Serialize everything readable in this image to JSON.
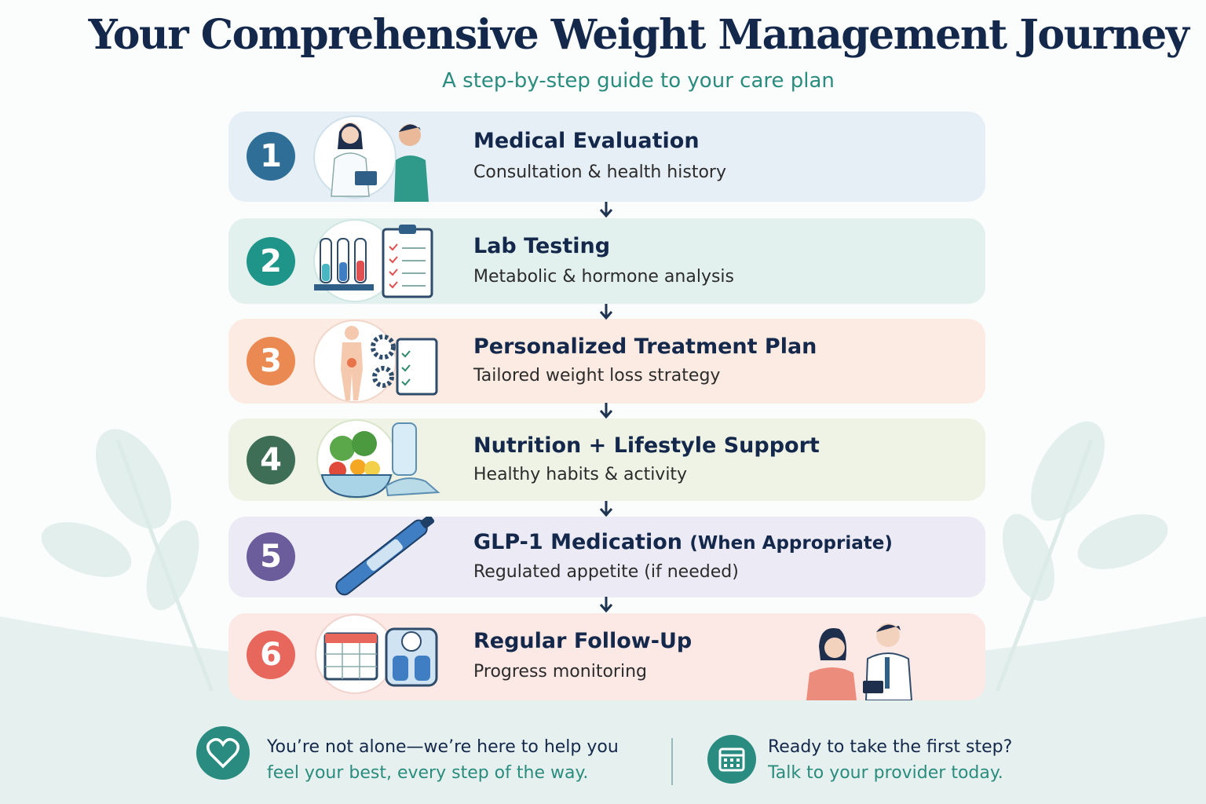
{
  "header": {
    "title": "Your Comprehensive Weight Management Journey",
    "subtitle": "A step-by-step guide to your care plan"
  },
  "steps": [
    {
      "number": "1",
      "title": "Medical Evaluation",
      "description": "Consultation & health history"
    },
    {
      "number": "2",
      "title": "Lab Testing",
      "description": "Metabolic & hormone analysis"
    },
    {
      "number": "3",
      "title": "Personalized Treatment Plan",
      "description": "Tailored weight loss strategy"
    },
    {
      "number": "4",
      "title": "Nutrition + Lifestyle Support",
      "description": "Healthy habits & activity"
    },
    {
      "number": "5",
      "title": "GLP-1 Medication",
      "title_note": "(When Appropriate)",
      "description": "Regulated appetite (if needed)"
    },
    {
      "number": "6",
      "title": "Regular Follow-Up",
      "description": "Progress monitoring"
    }
  ],
  "footer": {
    "left": {
      "line1": "You’re not alone—we’re here to help you",
      "line2": "feel your best, every step of the way."
    },
    "right": {
      "line1": "Ready to take the first step?",
      "line2": "Talk to your provider today."
    }
  }
}
